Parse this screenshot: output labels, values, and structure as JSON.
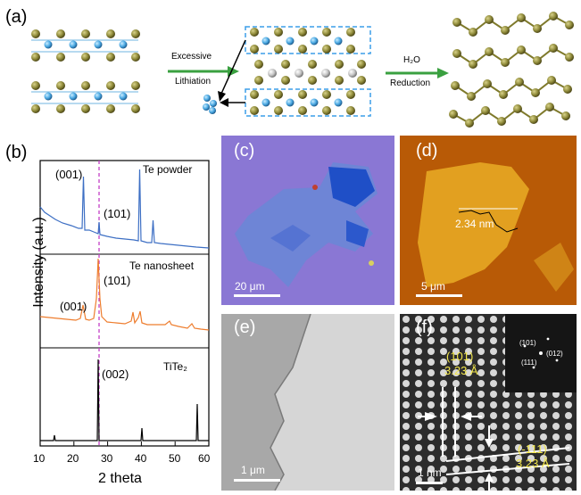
{
  "panels": {
    "a": {
      "label": "(a)",
      "arrow1": [
        "Excessive",
        "Lithiation"
      ],
      "arrow2_top": "H₂O",
      "arrow2_bottom": "Reduction"
    },
    "b": {
      "label": "(b)",
      "ylabel": "Intensity (a.u.)",
      "xlabel": "2 theta",
      "xticks": [
        "10",
        "20",
        "30",
        "40",
        "50",
        "60"
      ],
      "traces": [
        {
          "name": "Te powder",
          "peaks": [
            "(001)",
            "(101)"
          ],
          "color": "#3d6fc4"
        },
        {
          "name": "Te nanosheet",
          "peaks": [
            "(001)",
            "(101)"
          ],
          "color": "#ee7d2e"
        },
        {
          "name": "TiTe₂",
          "peaks": [
            "(002)"
          ],
          "color": "#000000"
        }
      ]
    },
    "c": {
      "label": "(c)",
      "scale": "20 μm"
    },
    "d": {
      "label": "(d)",
      "scale": "5 μm",
      "height": "2.34 nm"
    },
    "e": {
      "label": "(e)",
      "scale": "1 μm"
    },
    "f": {
      "label": "(f)",
      "scale": "1 nm",
      "plane1": "(101)",
      "spacing1": "3.23 Å",
      "plane2": "(-111)",
      "spacing2": "3.23 Å",
      "fft": [
        "(101)",
        "(012)",
        "(111)"
      ]
    }
  }
}
